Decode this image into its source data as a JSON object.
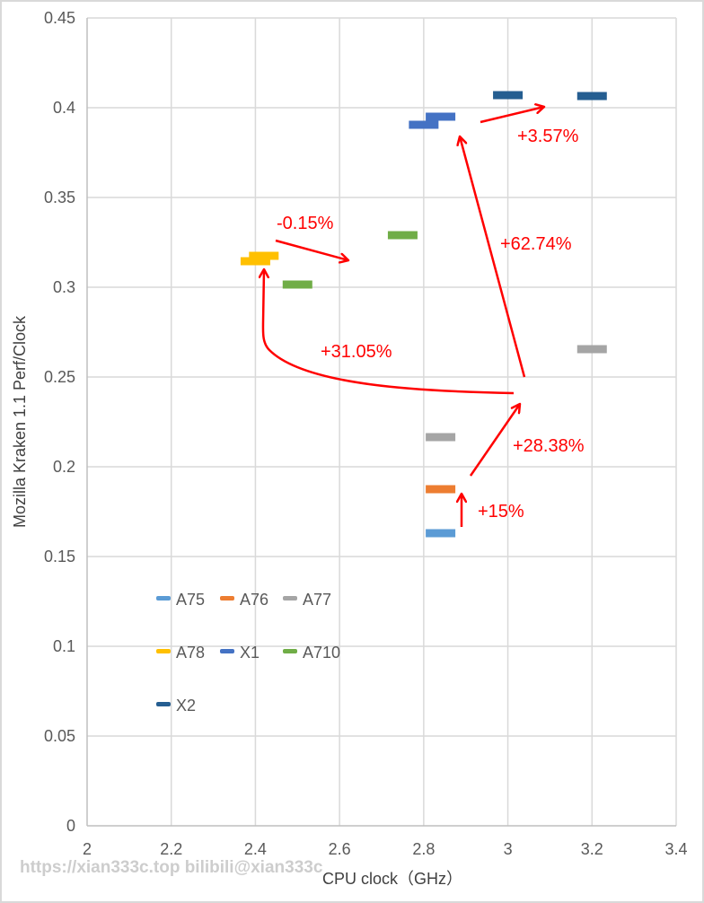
{
  "chart_data": {
    "type": "scatter",
    "title": "",
    "xlabel": "CPU clock（GHz）",
    "ylabel": "Mozilla Kraken 1.1  Perf/Clock",
    "xlim": [
      2,
      3.4
    ],
    "ylim": [
      0,
      0.45
    ],
    "x_ticks": [
      "2",
      "2.2",
      "2.4",
      "2.6",
      "2.8",
      "3",
      "3.2",
      "3.4"
    ],
    "x_tick_values": [
      2,
      2.2,
      2.4,
      2.6,
      2.8,
      3,
      3.2,
      3.4
    ],
    "y_ticks": [
      "0",
      "0.05",
      "0.1",
      "0.15",
      "0.2",
      "0.25",
      "0.3",
      "0.35",
      "0.4",
      "0.45"
    ],
    "y_tick_values": [
      0,
      0.05,
      0.1,
      0.15,
      0.2,
      0.25,
      0.3,
      0.35,
      0.4,
      0.45
    ],
    "grid": true,
    "legend_position": "bottom-left",
    "series": [
      {
        "name": "A75",
        "color": "#5b9bd5",
        "points": [
          [
            2.84,
            0.163
          ]
        ]
      },
      {
        "name": "A76",
        "color": "#ed7d31",
        "points": [
          [
            2.84,
            0.1875
          ]
        ]
      },
      {
        "name": "A77",
        "color": "#a5a5a5",
        "points": [
          [
            2.84,
            0.2165
          ],
          [
            3.2,
            0.2655
          ]
        ]
      },
      {
        "name": "A78",
        "color": "#ffc000",
        "points": [
          [
            2.4,
            0.3145
          ],
          [
            2.42,
            0.3175
          ]
        ]
      },
      {
        "name": "X1",
        "color": "#4472c4",
        "points": [
          [
            2.8,
            0.3905
          ],
          [
            2.84,
            0.395
          ]
        ]
      },
      {
        "name": "A710",
        "color": "#70ad47",
        "points": [
          [
            2.5,
            0.3015
          ],
          [
            2.75,
            0.329
          ]
        ]
      },
      {
        "name": "X2",
        "color": "#255e91",
        "points": [
          [
            3.0,
            0.407
          ],
          [
            3.2,
            0.4065
          ]
        ]
      }
    ],
    "annotations": [
      {
        "text": "+15%",
        "color": "#ff0000"
      },
      {
        "text": "+28.38%",
        "color": "#ff0000"
      },
      {
        "text": "+31.05%",
        "color": "#ff0000"
      },
      {
        "text": "+62.74%",
        "color": "#ff0000"
      },
      {
        "text": "-0.15%",
        "color": "#ff0000"
      },
      {
        "text": "+3.57%",
        "color": "#ff0000"
      }
    ]
  },
  "watermark": "https://xian333c.top bilibili@xian333c"
}
